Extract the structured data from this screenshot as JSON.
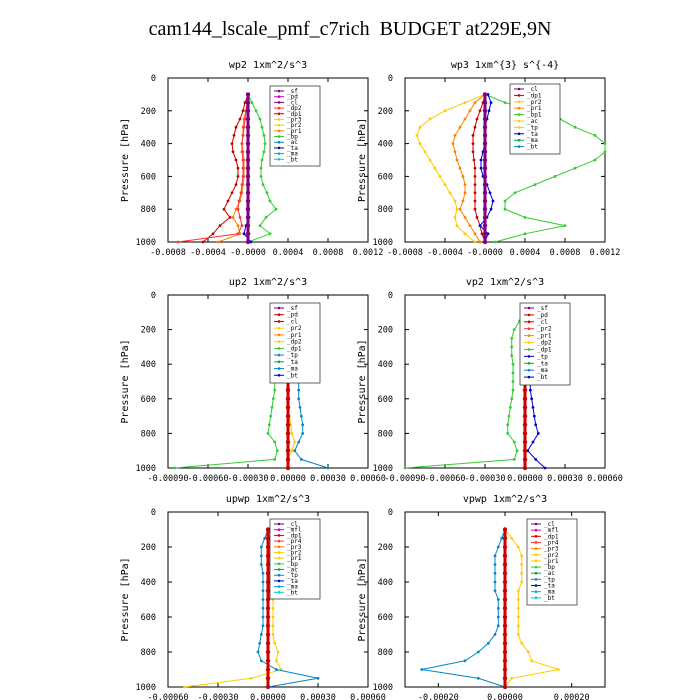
{
  "title": "cam144_lscale_pmf_c7rich  BUDGET at229E,9N",
  "chart_data": [
    {
      "type": "line",
      "title": "wp2   1xm^2/s^3",
      "ylabel": "Pressure [hPa]",
      "ylim": [
        1000,
        0
      ],
      "xlim": [
        -0.0008,
        0.0012
      ],
      "xticks": [
        "-0.0008",
        "-0.0004",
        "-0.0000",
        "0.0004",
        "0.0008",
        "0.0012"
      ],
      "yticks": [
        "0",
        "200",
        "400",
        "600",
        "800",
        "1000"
      ],
      "p": [
        100,
        150,
        200,
        250,
        300,
        350,
        400,
        450,
        500,
        550,
        600,
        650,
        700,
        750,
        800,
        850,
        900,
        950,
        1000
      ],
      "legend": [
        "_sf",
        "_pd",
        "_cl",
        "_dp2",
        "_dp1",
        "_pr3",
        "_pr2",
        "_pr1",
        "_bp",
        "_ac",
        "_ta",
        "_ma",
        "_bt"
      ],
      "series": [
        {
          "name": "_dp1",
          "color": "#cc0000",
          "values": [
            0,
            -3e-05,
            -5e-05,
            -8e-05,
            -0.00012,
            -0.00014,
            -0.00016,
            -0.00015,
            -0.00012,
            -0.0001,
            -0.0001,
            -0.00012,
            -0.00016,
            -0.0002,
            -0.00024,
            -0.00018,
            -0.00028,
            -0.00035,
            -0.00045
          ]
        },
        {
          "name": "_pr1",
          "color": "#ff8000",
          "values": [
            0,
            0,
            -2e-05,
            -4e-05,
            -5e-05,
            -5e-05,
            -6e-05,
            -5e-05,
            -4e-05,
            -4e-05,
            -4e-05,
            -5e-05,
            -6e-05,
            -8e-05,
            -0.00012,
            -0.00015,
            -0.0001,
            -8e-05,
            -0.0003
          ]
        },
        {
          "name": "_dp2",
          "color": "#ff3333",
          "values": [
            0,
            -1e-05,
            -2e-05,
            -3e-05,
            -4e-05,
            -5e-05,
            -6e-05,
            -6e-05,
            -5e-05,
            -5e-05,
            -5e-05,
            -6e-05,
            -7e-05,
            -9e-05,
            -0.0001,
            -8e-05,
            -6e-05,
            -0.0001,
            -0.0007
          ]
        },
        {
          "name": "_bp",
          "color": "#33cc33",
          "values": [
            0,
            4e-05,
            8e-05,
            0.00012,
            0.00014,
            0.00016,
            0.00017,
            0.00016,
            0.00014,
            0.00013,
            0.00013,
            0.00015,
            0.00019,
            0.00022,
            0.00028,
            0.00018,
            0.00012,
            0.00022,
            0.0
          ]
        },
        {
          "name": "_ta",
          "color": "#0000cc",
          "values": [
            0,
            0,
            0,
            0,
            0,
            0,
            0,
            0,
            0,
            0,
            0,
            0,
            0,
            0,
            0,
            1e-05,
            -2e-05,
            -4e-05,
            3e-05
          ]
        },
        {
          "name": "_ma",
          "color": "#00aacc",
          "values": [
            0,
            0,
            0,
            0,
            0,
            0,
            0,
            0,
            0,
            0,
            0,
            0,
            0,
            0,
            0,
            0,
            0,
            1e-05,
            0
          ]
        },
        {
          "name": "_cl",
          "color": "#800080",
          "values": [
            0,
            0,
            0,
            0,
            0,
            0,
            0,
            0,
            0,
            0,
            0,
            0,
            0,
            0,
            0,
            0,
            0,
            0,
            0
          ]
        }
      ]
    },
    {
      "type": "line",
      "title": "wp3   1xm^{3} s^{-4}",
      "ylabel": "Pressure [hPa]",
      "ylim": [
        1000,
        0
      ],
      "xlim": [
        -0.0008,
        0.0012
      ],
      "xticks": [
        "-0.0008",
        "-0.0004",
        "-0.0000",
        "0.0004",
        "0.0008",
        "0.0012"
      ],
      "yticks": [
        "0",
        "200",
        "400",
        "600",
        "800",
        "1000"
      ],
      "p": [
        100,
        150,
        200,
        250,
        300,
        350,
        400,
        450,
        500,
        550,
        600,
        650,
        700,
        750,
        800,
        850,
        900,
        950,
        1000
      ],
      "legend": [
        "_cl",
        "_dp1",
        "_pr2",
        "_pr1",
        "_bp1",
        "_ac",
        "_tp",
        "_ta",
        "_ma",
        "_bt"
      ],
      "series": [
        {
          "name": "_pr2",
          "color": "#ffcc00",
          "values": [
            0,
            -0.0002,
            -0.0004,
            -0.00055,
            -0.00065,
            -0.00068,
            -0.00065,
            -0.0006,
            -0.00055,
            -0.0005,
            -0.00045,
            -0.0004,
            -0.00035,
            -0.0003,
            -0.00028,
            -0.0003,
            -0.00028,
            -0.0002,
            -0.0001
          ]
        },
        {
          "name": "_pr1",
          "color": "#ff8000",
          "values": [
            0,
            -0.0001,
            -0.00015,
            -0.0002,
            -0.00025,
            -0.0003,
            -0.00032,
            -0.0003,
            -0.00028,
            -0.00025,
            -0.00022,
            -0.0002,
            -0.0002,
            -0.00022,
            -0.00025,
            -0.0002,
            -0.00015,
            -0.0001,
            -5e-05
          ]
        },
        {
          "name": "_dp1",
          "color": "#cc0000",
          "values": [
            0,
            -2e-05,
            -5e-05,
            -8e-05,
            -0.0001,
            -0.00012,
            -0.00012,
            -0.00012,
            -0.00011,
            -0.0001,
            -0.0001,
            -0.0001,
            -0.0001,
            -0.0001,
            -0.0001,
            -8e-05,
            -5e-05,
            -3e-05,
            0
          ]
        },
        {
          "name": "_bp1",
          "color": "#33cc33",
          "values": [
            0,
            0.0002,
            0.0005,
            0.00075,
            0.0009,
            0.0011,
            0.0012,
            0.0012,
            0.0011,
            0.0009,
            0.0007,
            0.0005,
            0.0003,
            0.0002,
            0.0002,
            0.0004,
            0.0008,
            0.0004,
            0.0001
          ]
        },
        {
          "name": "_ta",
          "color": "#0000cc",
          "values": [
            3e-05,
            6e-05,
            4e-05,
            2e-05,
            0,
            0,
            0,
            -2e-05,
            -4e-05,
            -4e-05,
            -2e-05,
            2e-05,
            5e-05,
            8e-05,
            6e-05,
            2e-05,
            -5e-05,
            3e-05,
            0.0
          ]
        },
        {
          "name": "_cl",
          "color": "#800080",
          "values": [
            0,
            0,
            0,
            0,
            0,
            0,
            0,
            0,
            0,
            0,
            0,
            0,
            0,
            0,
            0,
            0,
            0,
            0,
            0
          ]
        }
      ]
    },
    {
      "type": "line",
      "title": "up2   1xm^2/s^3",
      "ylabel": "Pressure [hPa]",
      "ylim": [
        1000,
        0
      ],
      "xlim": [
        -0.0009,
        0.0006
      ],
      "xticks": [
        "-0.00090",
        "-0.00060",
        "-0.00030",
        "0.00000",
        "0.00030",
        "0.00060"
      ],
      "yticks": [
        "0",
        "200",
        "400",
        "600",
        "800",
        "1000"
      ],
      "p": [
        100,
        150,
        200,
        250,
        300,
        350,
        400,
        450,
        500,
        550,
        600,
        650,
        700,
        750,
        800,
        850,
        900,
        950,
        1000
      ],
      "legend": [
        "_sf",
        "_pd",
        "_cl",
        "_pr2",
        "_pr1",
        "_dp2",
        "_dp1",
        "_tp",
        "_ta",
        "_ma",
        "_bt"
      ],
      "series": [
        {
          "name": "_dp1",
          "color": "#33cc33",
          "values": [
            0,
            -5e-05,
            -0.0001,
            -0.00012,
            -0.00012,
            -0.00011,
            -0.0001,
            -0.0001,
            -0.0001,
            -0.0001,
            -0.00011,
            -0.00012,
            -0.00013,
            -0.00014,
            -0.00015,
            -0.0001,
            -8e-05,
            -0.0001,
            -0.00085
          ]
        },
        {
          "name": "_tp",
          "color": "#0088cc",
          "values": [
            0,
            3e-05,
            8e-05,
            0.00011,
            0.00012,
            0.00011,
            0.0001,
            9e-05,
            8e-05,
            8e-05,
            8e-05,
            9e-05,
            0.0001,
            0.00011,
            0.00011,
            8e-05,
            5e-05,
            0.0001,
            0.0003
          ]
        },
        {
          "name": "_pr2",
          "color": "#ffcc00",
          "values": [
            0,
            0,
            0,
            0,
            0,
            0,
            0,
            0,
            0,
            0,
            0,
            0,
            1e-05,
            2e-05,
            3e-05,
            5e-05,
            3e-05,
            0,
            0
          ]
        },
        {
          "name": "_pd",
          "color": "#cc0000",
          "values": [
            0,
            0,
            0,
            0,
            0,
            0,
            0,
            0,
            0,
            0,
            0,
            0,
            0,
            0,
            0,
            0,
            0,
            0,
            0
          ]
        }
      ]
    },
    {
      "type": "line",
      "title": "vp2   1xm^2/s^3",
      "ylabel": "Pressure [hPa]",
      "ylim": [
        1000,
        0
      ],
      "xlim": [
        -0.0009,
        0.0006
      ],
      "xticks": [
        "-0.00090",
        "-0.00060",
        "-0.00030",
        "0.00000",
        "0.00030",
        "0.00060"
      ],
      "yticks": [
        "0",
        "200",
        "400",
        "600",
        "800",
        "1000"
      ],
      "p": [
        100,
        150,
        200,
        250,
        300,
        350,
        400,
        450,
        500,
        550,
        600,
        650,
        700,
        750,
        800,
        850,
        900,
        950,
        1000
      ],
      "legend": [
        "_sf",
        "_pd",
        "_cl",
        "_pr2",
        "_pr1",
        "_dp2",
        "_dp1",
        "_tp",
        "_ta",
        "_ma",
        "_bt"
      ],
      "series": [
        {
          "name": "_dp1",
          "color": "#33cc33",
          "values": [
            0,
            -4e-05,
            -8e-05,
            -0.0001,
            -0.0001,
            -0.0001,
            -9e-05,
            -9e-05,
            -9e-05,
            -9e-05,
            -0.0001,
            -0.00011,
            -0.00012,
            -0.00013,
            -0.00013,
            -8e-05,
            -6e-05,
            -8e-05,
            -0.0009
          ]
        },
        {
          "name": "_tp",
          "color": "#0000cc",
          "values": [
            0,
            2e-05,
            5e-05,
            7e-05,
            7e-05,
            6e-05,
            5e-05,
            4e-05,
            4e-05,
            4e-05,
            5e-05,
            6e-05,
            7e-05,
            8e-05,
            0.0001,
            6e-05,
            2e-05,
            8e-05,
            0.00015
          ]
        },
        {
          "name": "_pd",
          "color": "#cc0000",
          "values": [
            0,
            0,
            0,
            0,
            0,
            0,
            0,
            0,
            0,
            0,
            0,
            0,
            0,
            0,
            0,
            0,
            0,
            0,
            0
          ]
        }
      ]
    },
    {
      "type": "line",
      "title": "upwp   1xm^2/s^3",
      "ylabel": "Pressure [hPa]",
      "ylim": [
        1000,
        0
      ],
      "xlim": [
        -0.0006,
        0.0006
      ],
      "xticks": [
        "-0.00060",
        "-0.00030",
        "0.00000",
        "0.00030",
        "0.00060"
      ],
      "yticks": [
        "0",
        "200",
        "400",
        "600",
        "800",
        "1000"
      ],
      "p": [
        100,
        150,
        200,
        250,
        300,
        350,
        400,
        450,
        500,
        550,
        600,
        650,
        700,
        750,
        800,
        850,
        900,
        950,
        1000
      ],
      "legend": [
        "_cl",
        "_mfl",
        "_dp1",
        "_pr4",
        "_pr3",
        "_pr2",
        "_pr1",
        "_bp",
        "_ac",
        "_tp",
        "_ta",
        "_ma",
        "_bt"
      ],
      "series": [
        {
          "name": "_pr1",
          "color": "#ffcc00",
          "values": [
            0,
            4e-05,
            6e-05,
            5e-05,
            4e-05,
            3e-05,
            3e-05,
            3e-05,
            3e-05,
            3e-05,
            3e-05,
            3e-05,
            3e-05,
            4e-05,
            6e-05,
            5e-05,
            8e-05,
            -0.0001,
            -0.0005
          ]
        },
        {
          "name": "_tp",
          "color": "#0088cc",
          "values": [
            0,
            -2e-05,
            -4e-05,
            -4e-05,
            -4e-05,
            -3e-05,
            -3e-05,
            -3e-05,
            -3e-05,
            -3e-05,
            -3e-05,
            -3e-05,
            -4e-05,
            -5e-05,
            -6e-05,
            -4e-05,
            5e-05,
            0.0003,
            0.0
          ]
        },
        {
          "name": "_dp1",
          "color": "#cc0000",
          "values": [
            0,
            0,
            0,
            0,
            0,
            0,
            0,
            0,
            0,
            0,
            0,
            0,
            0,
            0,
            0,
            0,
            0,
            0,
            0
          ]
        }
      ]
    },
    {
      "type": "line",
      "title": "vpwp   1xm^2/s^3",
      "ylabel": "Pressure [hPa]",
      "ylim": [
        1000,
        0
      ],
      "xlim": [
        -0.0003,
        0.0003
      ],
      "xticks": [
        "-0.00020",
        "0.00000",
        "0.00020"
      ],
      "yticks": [
        "0",
        "200",
        "400",
        "600",
        "800",
        "1000"
      ],
      "p": [
        100,
        150,
        200,
        250,
        300,
        350,
        400,
        450,
        500,
        550,
        600,
        650,
        700,
        750,
        800,
        850,
        900,
        950,
        1000
      ],
      "legend": [
        "_cl",
        "_mfl",
        "_dp1",
        "_pr4",
        "_pr3",
        "_pr2",
        "_pr1",
        "_bp",
        "_ac",
        "_tp",
        "_ta",
        "_ma",
        "_bt"
      ],
      "series": [
        {
          "name": "_pr1",
          "color": "#ffcc00",
          "values": [
            0,
            2e-05,
            4e-05,
            5e-05,
            5e-05,
            5e-05,
            5e-05,
            4e-05,
            4e-05,
            4e-05,
            4e-05,
            4e-05,
            4e-05,
            5e-05,
            7e-05,
            8e-05,
            0.00016,
            2e-05,
            0
          ]
        },
        {
          "name": "_tp",
          "color": "#0088cc",
          "values": [
            0,
            -1e-05,
            -2e-05,
            -3e-05,
            -3e-05,
            -3e-05,
            -3e-05,
            -3e-05,
            -2e-05,
            -2e-05,
            -2e-05,
            -2e-05,
            -3e-05,
            -5e-05,
            -8e-05,
            -0.00012,
            -0.00025,
            -8e-05,
            0
          ]
        },
        {
          "name": "_dp1",
          "color": "#cc0000",
          "values": [
            0,
            0,
            0,
            0,
            0,
            0,
            0,
            0,
            0,
            0,
            0,
            0,
            0,
            0,
            0,
            0,
            0,
            0,
            0
          ]
        }
      ]
    }
  ]
}
